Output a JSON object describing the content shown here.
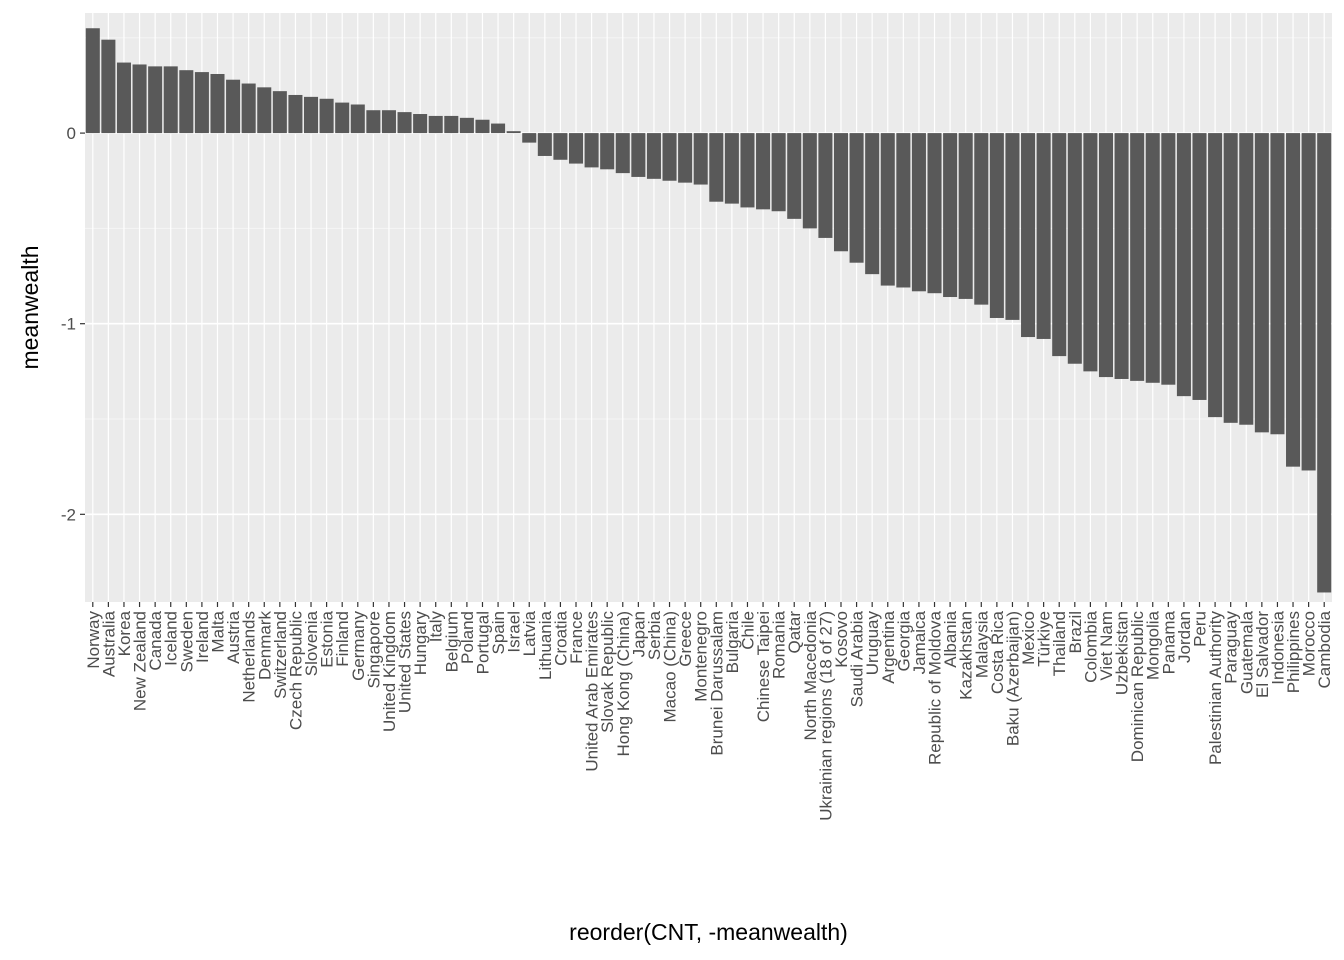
{
  "chart_data": {
    "type": "bar",
    "xlabel": "reorder(CNT, -meanwealth)",
    "ylabel": "meanwealth",
    "ylim": [
      -2.46,
      0.63
    ],
    "yticks": [
      0,
      -1,
      -2
    ],
    "ytick_labels": [
      "0",
      "-1",
      "-2"
    ],
    "grid": true,
    "colors": {
      "bar": "#595959",
      "panel": "#ebebeb",
      "grid_major": "#ffffff",
      "grid_minor": "#f5f5f5"
    },
    "categories": [
      "Norway",
      "Australia",
      "Korea",
      "New Zealand",
      "Canada",
      "Iceland",
      "Sweden",
      "Ireland",
      "Malta",
      "Austria",
      "Netherlands",
      "Denmark",
      "Switzerland",
      "Czech Republic",
      "Slovenia",
      "Estonia",
      "Finland",
      "Germany",
      "Singapore",
      "United Kingdom",
      "United States",
      "Hungary",
      "Italy",
      "Belgium",
      "Poland",
      "Portugal",
      "Spain",
      "Israel",
      "Latvia",
      "Lithuania",
      "Croatia",
      "France",
      "United Arab Emirates",
      "Slovak Republic",
      "Hong Kong (China)",
      "Japan",
      "Serbia",
      "Macao (China)",
      "Greece",
      "Montenegro",
      "Brunei Darussalam",
      "Bulgaria",
      "Chile",
      "Chinese Taipei",
      "Romania",
      "Qatar",
      "North Macedonia",
      "Ukrainian regions (18 of 27)",
      "Kosovo",
      "Saudi Arabia",
      "Uruguay",
      "Argentina",
      "Georgia",
      "Jamaica",
      "Republic of Moldova",
      "Albania",
      "Kazakhstan",
      "Malaysia",
      "Costa Rica",
      "Baku (Azerbaijan)",
      "Mexico",
      "Türkiye",
      "Thailand",
      "Brazil",
      "Colombia",
      "Viet Nam",
      "Uzbekistan",
      "Dominican Republic",
      "Mongolia",
      "Panama",
      "Jordan",
      "Peru",
      "Palestinian Authority",
      "Paraguay",
      "Guatemala",
      "El Salvador",
      "Indonesia",
      "Philippines",
      "Morocco",
      "Cambodia"
    ],
    "values": [
      0.55,
      0.49,
      0.37,
      0.36,
      0.35,
      0.35,
      0.33,
      0.32,
      0.31,
      0.28,
      0.26,
      0.24,
      0.22,
      0.2,
      0.19,
      0.18,
      0.16,
      0.15,
      0.12,
      0.12,
      0.11,
      0.1,
      0.09,
      0.09,
      0.08,
      0.07,
      0.05,
      0.01,
      -0.05,
      -0.12,
      -0.14,
      -0.16,
      -0.18,
      -0.19,
      -0.21,
      -0.23,
      -0.24,
      -0.25,
      -0.26,
      -0.27,
      -0.36,
      -0.37,
      -0.39,
      -0.4,
      -0.41,
      -0.45,
      -0.5,
      -0.55,
      -0.62,
      -0.68,
      -0.74,
      -0.8,
      -0.81,
      -0.83,
      -0.84,
      -0.86,
      -0.87,
      -0.9,
      -0.97,
      -0.98,
      -1.07,
      -1.08,
      -1.17,
      -1.21,
      -1.25,
      -1.28,
      -1.29,
      -1.3,
      -1.31,
      -1.32,
      -1.38,
      -1.4,
      -1.49,
      -1.52,
      -1.53,
      -1.57,
      -1.58,
      -1.75,
      -1.77,
      -2.41
    ]
  }
}
